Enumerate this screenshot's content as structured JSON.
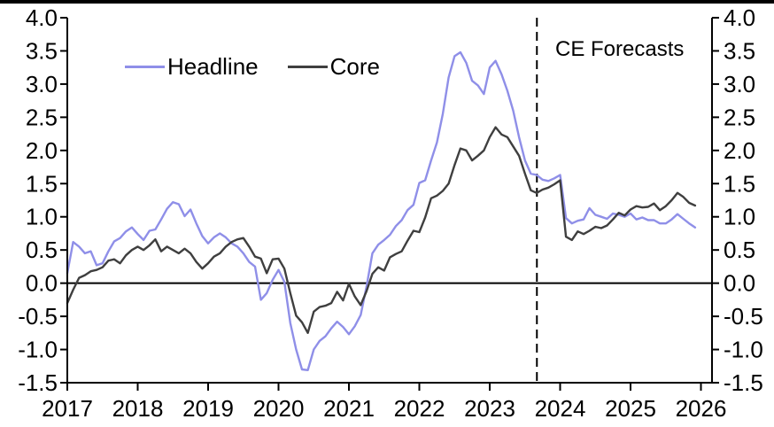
{
  "chart_data": {
    "type": "line",
    "title": "",
    "frequency": "monthly",
    "x_start": "2017-01",
    "x_end": "2025-12",
    "x_axis": {
      "tick_labels": [
        "2017",
        "2018",
        "2019",
        "2020",
        "2021",
        "2022",
        "2023",
        "2024",
        "2025",
        "2026"
      ]
    },
    "y_axis": {
      "min": -1.5,
      "max": 4.0,
      "step": 0.5,
      "tick_labels": [
        "4.0",
        "3.5",
        "3.0",
        "2.5",
        "2.0",
        "1.5",
        "1.0",
        "0.5",
        "0.0",
        "-0.5",
        "-1.0",
        "-1.5"
      ],
      "mirrored_right": true
    },
    "grid": false,
    "zero_line": true,
    "legend_position": "top-left-inside",
    "legend": [
      {
        "label": "Headline",
        "color": "#8f8fe8"
      },
      {
        "label": "Core",
        "color": "#3f3f3f"
      }
    ],
    "forecast_divider": {
      "label": "CE Forecasts",
      "style": "dashed-vertical",
      "year": 2023.67
    },
    "series": [
      {
        "name": "Headline",
        "color": "#8f8fe8",
        "values": [
          0.15,
          0.62,
          0.55,
          0.45,
          0.48,
          0.27,
          0.3,
          0.48,
          0.63,
          0.68,
          0.78,
          0.84,
          0.74,
          0.65,
          0.79,
          0.81,
          0.96,
          1.12,
          1.22,
          1.19,
          1.01,
          1.11,
          0.9,
          0.71,
          0.6,
          0.69,
          0.75,
          0.69,
          0.6,
          0.55,
          0.45,
          0.32,
          0.25,
          -0.25,
          -0.15,
          0.05,
          0.2,
          0.02,
          -0.6,
          -1.0,
          -1.3,
          -1.31,
          -1.0,
          -0.87,
          -0.8,
          -0.68,
          -0.58,
          -0.66,
          -0.77,
          -0.65,
          -0.48,
          -0.05,
          0.45,
          0.58,
          0.65,
          0.73,
          0.86,
          0.95,
          1.1,
          1.18,
          1.51,
          1.55,
          1.85,
          2.12,
          2.55,
          3.1,
          3.42,
          3.48,
          3.32,
          3.05,
          2.98,
          2.85,
          3.25,
          3.35,
          3.15,
          2.9,
          2.6,
          2.2,
          1.85,
          1.65,
          1.63,
          1.56,
          1.54,
          1.58,
          1.63,
          0.98,
          0.9,
          0.94,
          0.96,
          1.13,
          1.03,
          1.0,
          0.97,
          1.05,
          1.03,
          1.0,
          1.05,
          0.96,
          0.99,
          0.95,
          0.95,
          0.9,
          0.9,
          0.96,
          1.04,
          0.97,
          0.9,
          0.84
        ]
      },
      {
        "name": "Core",
        "color": "#3f3f3f",
        "values": [
          -0.3,
          -0.1,
          0.08,
          0.12,
          0.18,
          0.2,
          0.24,
          0.34,
          0.36,
          0.3,
          0.42,
          0.5,
          0.55,
          0.5,
          0.57,
          0.66,
          0.48,
          0.55,
          0.5,
          0.45,
          0.52,
          0.45,
          0.32,
          0.22,
          0.3,
          0.4,
          0.45,
          0.55,
          0.62,
          0.66,
          0.68,
          0.55,
          0.4,
          0.37,
          0.15,
          0.36,
          0.37,
          0.22,
          -0.15,
          -0.49,
          -0.59,
          -0.75,
          -0.43,
          -0.36,
          -0.34,
          -0.3,
          -0.13,
          -0.26,
          -0.01,
          -0.2,
          -0.33,
          -0.12,
          0.14,
          0.24,
          0.19,
          0.39,
          0.44,
          0.48,
          0.64,
          0.79,
          0.77,
          0.99,
          1.28,
          1.32,
          1.39,
          1.5,
          1.78,
          2.03,
          2.0,
          1.85,
          1.92,
          2.0,
          2.2,
          2.35,
          2.24,
          2.2,
          2.06,
          1.92,
          1.65,
          1.4,
          1.36,
          1.41,
          1.44,
          1.49,
          1.55,
          0.7,
          0.65,
          0.78,
          0.74,
          0.79,
          0.85,
          0.83,
          0.87,
          0.96,
          1.06,
          1.02,
          1.11,
          1.16,
          1.14,
          1.15,
          1.2,
          1.1,
          1.16,
          1.25,
          1.36,
          1.3,
          1.21,
          1.17
        ]
      }
    ]
  }
}
